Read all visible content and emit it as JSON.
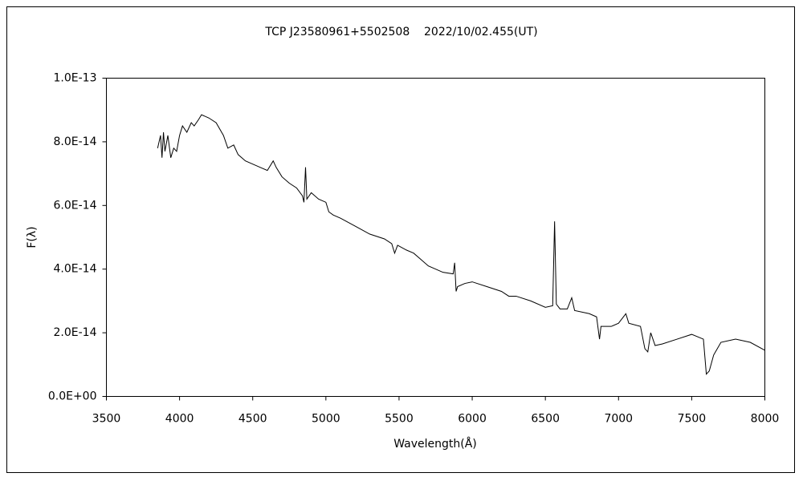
{
  "chart_data": {
    "type": "line",
    "title": "TCP J23580961+5502508    2022/10/02.455(UT)",
    "x_label": "Wavelength(Å)",
    "y_label": "F(λ)",
    "xlim": [
      3500,
      8000
    ],
    "xticks": [
      3500,
      4000,
      4500,
      5000,
      5500,
      6000,
      6500,
      7000,
      7500,
      8000
    ],
    "ylim": [
      0,
      1e-13
    ],
    "yticks": [
      {
        "value": 0,
        "label": "0.0E+00"
      },
      {
        "value": 2e-14,
        "label": "2.0E-14"
      },
      {
        "value": 4e-14,
        "label": "4.0E-14"
      },
      {
        "value": 6e-14,
        "label": "6.0E-14"
      },
      {
        "value": 8e-14,
        "label": "8.0E-14"
      },
      {
        "value": 1e-13,
        "label": "1.0E-13"
      }
    ],
    "grid": false,
    "series": [
      {
        "color": "#000000",
        "x": [
          3850,
          3870,
          3880,
          3890,
          3900,
          3920,
          3940,
          3960,
          3980,
          4000,
          4020,
          4050,
          4080,
          4100,
          4130,
          4150,
          4200,
          4250,
          4300,
          4330,
          4370,
          4400,
          4450,
          4500,
          4550,
          4600,
          4640,
          4660,
          4700,
          4750,
          4800,
          4840,
          4850,
          4861,
          4870,
          4900,
          4950,
          5000,
          5020,
          5050,
          5100,
          5200,
          5300,
          5400,
          5450,
          5470,
          5490,
          5550,
          5600,
          5650,
          5700,
          5800,
          5870,
          5880,
          5890,
          5900,
          5950,
          6000,
          6100,
          6200,
          6250,
          6300,
          6400,
          6500,
          6550,
          6563,
          6575,
          6600,
          6650,
          6680,
          6700,
          6800,
          6850,
          6870,
          6880,
          6950,
          7000,
          7050,
          7070,
          7150,
          7180,
          7200,
          7220,
          7250,
          7300,
          7400,
          7500,
          7580,
          7600,
          7620,
          7650,
          7700,
          7800,
          7900,
          8000
        ],
        "values": [
          7.8e-14,
          8.2e-14,
          7.5e-14,
          8.3e-14,
          7.7e-14,
          8.2e-14,
          7.5e-14,
          7.8e-14,
          7.7e-14,
          8.2e-14,
          8.5e-14,
          8.3e-14,
          8.6e-14,
          8.5e-14,
          8.7e-14,
          8.85e-14,
          8.75e-14,
          8.6e-14,
          8.2e-14,
          7.8e-14,
          7.9e-14,
          7.6e-14,
          7.4e-14,
          7.3e-14,
          7.2e-14,
          7.1e-14,
          7.4e-14,
          7.2e-14,
          6.9e-14,
          6.7e-14,
          6.55e-14,
          6.3e-14,
          6.1e-14,
          7.2e-14,
          6.2e-14,
          6.4e-14,
          6.2e-14,
          6.1e-14,
          5.8e-14,
          5.7e-14,
          5.6e-14,
          5.35e-14,
          5.1e-14,
          4.95e-14,
          4.8e-14,
          4.5e-14,
          4.75e-14,
          4.6e-14,
          4.5e-14,
          4.3e-14,
          4.1e-14,
          3.9e-14,
          3.85e-14,
          4.2e-14,
          3.3e-14,
          3.45e-14,
          3.55e-14,
          3.6e-14,
          3.45e-14,
          3.3e-14,
          3.15e-14,
          3.15e-14,
          3e-14,
          2.8e-14,
          2.85e-14,
          5.5e-14,
          2.9e-14,
          2.75e-14,
          2.75e-14,
          3.1e-14,
          2.7e-14,
          2.6e-14,
          2.5e-14,
          1.8e-14,
          2.2e-14,
          2.2e-14,
          2.3e-14,
          2.6e-14,
          2.3e-14,
          2.2e-14,
          1.5e-14,
          1.4e-14,
          2e-14,
          1.6e-14,
          1.65e-14,
          1.8e-14,
          1.95e-14,
          1.8e-14,
          7e-15,
          8e-15,
          1.3e-14,
          1.7e-14,
          1.8e-14,
          1.7e-14,
          1.45e-14
        ]
      }
    ]
  }
}
